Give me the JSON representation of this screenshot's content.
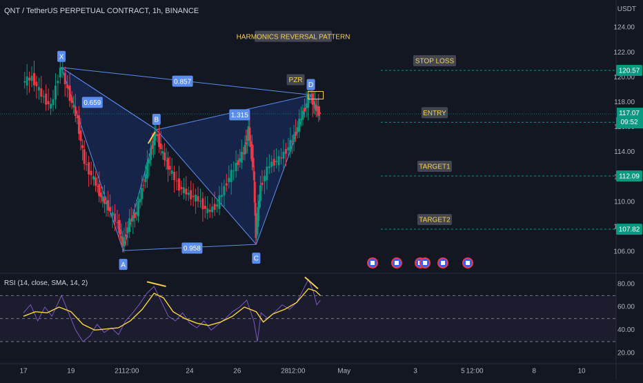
{
  "header": {
    "title": "QNT / TetherUS PERPETUAL CONTRACT, 1h, BINANCE",
    "currency": "USDT"
  },
  "chart_data": [
    {
      "type": "line",
      "name": "price-panel",
      "title": "HARMONICS REVERSAL PATTERN",
      "ylim": [
        104.5,
        125
      ],
      "y_ticks": [
        106,
        108,
        110,
        112,
        114,
        116,
        118,
        120,
        122,
        124
      ],
      "y_tick_labels": [
        "106.00",
        "108.00",
        "110.00",
        "112.00",
        "114.00",
        "116.00",
        "118.00",
        "120.00",
        "122.00",
        "124.00"
      ],
      "x_ticks": [
        {
          "label": "17",
          "day": 17
        },
        {
          "label": "19",
          "day": 19
        },
        {
          "label": "21",
          "day": 21
        },
        {
          "label": "12:00",
          "day": 21.5
        },
        {
          "label": "24",
          "day": 24
        },
        {
          "label": "26",
          "day": 26
        },
        {
          "label": "28",
          "day": 28
        },
        {
          "label": "12:00",
          "day": 28.5
        },
        {
          "label": "May",
          "day": 30.5
        },
        {
          "label": "3",
          "day": 33.5
        },
        {
          "label": "5",
          "day": 35.5
        },
        {
          "label": "12:00",
          "day": 36
        },
        {
          "label": "8",
          "day": 38.5
        },
        {
          "label": "10",
          "day": 40.5
        }
      ],
      "pattern_points": [
        {
          "label": "X",
          "day": 18.6,
          "price": 120.8
        },
        {
          "label": "A",
          "day": 21.2,
          "price": 106.1
        },
        {
          "label": "B",
          "day": 22.6,
          "price": 115.8
        },
        {
          "label": "C",
          "day": 26.8,
          "price": 106.6
        },
        {
          "label": "D",
          "day": 29.1,
          "price": 118.6
        }
      ],
      "ratios": [
        {
          "label": "0.659",
          "day": 19.9,
          "price": 118.0
        },
        {
          "label": "0.857",
          "day": 23.7,
          "price": 119.7
        },
        {
          "label": "1.315",
          "day": 26.1,
          "price": 117.0
        },
        {
          "label": "0.958",
          "day": 24.1,
          "price": 106.3
        }
      ],
      "prz_label": "PZR",
      "levels": [
        {
          "name": "STOP LOSS",
          "value": 120.57,
          "label": "120.57",
          "color": "#089981"
        },
        {
          "name": "ENTRY",
          "value": 116.4,
          "label": "116.40",
          "color": "#089981"
        },
        {
          "name": "TARGET1",
          "value": 112.09,
          "label": "112.09",
          "color": "#089981"
        },
        {
          "name": "TARGET2",
          "value": 107.82,
          "label": "107.82",
          "color": "#089981"
        }
      ],
      "last_price": {
        "value": 117.07,
        "label": "117.07",
        "countdown": "09:52",
        "color": "#089981"
      },
      "candles_close_path": [
        [
          17,
          119.6
        ],
        [
          17.4,
          120.0
        ],
        [
          17.8,
          118.6
        ],
        [
          18.2,
          117.6
        ],
        [
          18.6,
          120.8
        ],
        [
          19.0,
          118.4
        ],
        [
          19.3,
          116.6
        ],
        [
          19.6,
          113.2
        ],
        [
          20.0,
          111.8
        ],
        [
          20.3,
          110.4
        ],
        [
          20.6,
          109.6
        ],
        [
          21.0,
          108.2
        ],
        [
          21.2,
          106.6
        ],
        [
          21.5,
          108.4
        ],
        [
          21.8,
          109.2
        ],
        [
          22.1,
          111.6
        ],
        [
          22.4,
          114.2
        ],
        [
          22.6,
          115.6
        ],
        [
          22.9,
          113.8
        ],
        [
          23.2,
          112.6
        ],
        [
          23.6,
          111.2
        ],
        [
          24.0,
          110.6
        ],
        [
          24.4,
          110.2
        ],
        [
          24.8,
          109.2
        ],
        [
          25.2,
          109.8
        ],
        [
          25.6,
          111.6
        ],
        [
          26.0,
          113.0
        ],
        [
          26.3,
          114.0
        ],
        [
          26.5,
          115.8
        ],
        [
          26.7,
          112.8
        ],
        [
          26.8,
          107.4
        ],
        [
          27.0,
          111.2
        ],
        [
          27.4,
          113.0
        ],
        [
          27.8,
          113.4
        ],
        [
          28.2,
          114.4
        ],
        [
          28.5,
          115.6
        ],
        [
          28.8,
          117.2
        ],
        [
          29.1,
          118.6
        ],
        [
          29.3,
          117.6
        ],
        [
          29.5,
          117.07
        ]
      ],
      "events": [
        "flag-icon",
        "flag-icon",
        "flag-icon",
        "flag-icon",
        "flag-icon",
        "flag-icon"
      ]
    },
    {
      "type": "line",
      "name": "rsi-panel",
      "title": "RSI (14, close, SMA, 14, 2)",
      "ylim": [
        15,
        87
      ],
      "y_ticks": [
        20,
        40,
        60,
        80
      ],
      "y_tick_labels": [
        "20.00",
        "40.00",
        "60.00",
        "80.00"
      ],
      "bands": [
        70,
        50,
        30
      ],
      "series": [
        {
          "name": "RSI",
          "color": "#7e57c2",
          "points": [
            [
              17,
              55
            ],
            [
              17.3,
              62
            ],
            [
              17.6,
              48
            ],
            [
              17.9,
              60
            ],
            [
              18.2,
              52
            ],
            [
              18.6,
              70
            ],
            [
              18.9,
              55
            ],
            [
              19.2,
              40
            ],
            [
              19.5,
              30
            ],
            [
              19.8,
              35
            ],
            [
              20.1,
              45
            ],
            [
              20.4,
              38
            ],
            [
              20.7,
              42
            ],
            [
              21.0,
              36
            ],
            [
              21.3,
              48
            ],
            [
              21.6,
              55
            ],
            [
              21.9,
              63
            ],
            [
              22.2,
              72
            ],
            [
              22.5,
              78
            ],
            [
              22.8,
              65
            ],
            [
              23.1,
              52
            ],
            [
              23.4,
              48
            ],
            [
              23.7,
              55
            ],
            [
              24.0,
              46
            ],
            [
              24.3,
              42
            ],
            [
              24.6,
              48
            ],
            [
              24.9,
              40
            ],
            [
              25.2,
              45
            ],
            [
              25.5,
              50
            ],
            [
              25.8,
              56
            ],
            [
              26.1,
              60
            ],
            [
              26.4,
              66
            ],
            [
              26.7,
              48
            ],
            [
              26.85,
              30
            ],
            [
              27.0,
              55
            ],
            [
              27.3,
              50
            ],
            [
              27.6,
              56
            ],
            [
              27.9,
              62
            ],
            [
              28.2,
              58
            ],
            [
              28.5,
              64
            ],
            [
              28.8,
              76
            ],
            [
              29.0,
              84
            ],
            [
              29.2,
              74
            ],
            [
              29.35,
              62
            ],
            [
              29.5,
              66
            ]
          ]
        },
        {
          "name": "RSI-based MA",
          "color": "#fdd835",
          "points": [
            [
              17,
              52
            ],
            [
              17.5,
              56
            ],
            [
              18.0,
              55
            ],
            [
              18.5,
              60
            ],
            [
              19.0,
              56
            ],
            [
              19.5,
              45
            ],
            [
              20.0,
              40
            ],
            [
              20.5,
              41
            ],
            [
              21.0,
              42
            ],
            [
              21.5,
              48
            ],
            [
              22.0,
              58
            ],
            [
              22.5,
              72
            ],
            [
              22.9,
              68
            ],
            [
              23.3,
              56
            ],
            [
              23.8,
              50
            ],
            [
              24.3,
              46
            ],
            [
              24.8,
              44
            ],
            [
              25.3,
              47
            ],
            [
              25.8,
              52
            ],
            [
              26.3,
              60
            ],
            [
              26.8,
              56
            ],
            [
              27.1,
              47
            ],
            [
              27.5,
              54
            ],
            [
              28.0,
              58
            ],
            [
              28.5,
              64
            ],
            [
              29.0,
              76
            ],
            [
              29.3,
              74
            ],
            [
              29.5,
              70
            ]
          ]
        }
      ],
      "divergence_markers": [
        {
          "from": [
            22.2,
            82
          ],
          "to": [
            23.0,
            78
          ]
        },
        {
          "from": [
            28.85,
            86
          ],
          "to": [
            29.4,
            76
          ]
        }
      ]
    }
  ]
}
